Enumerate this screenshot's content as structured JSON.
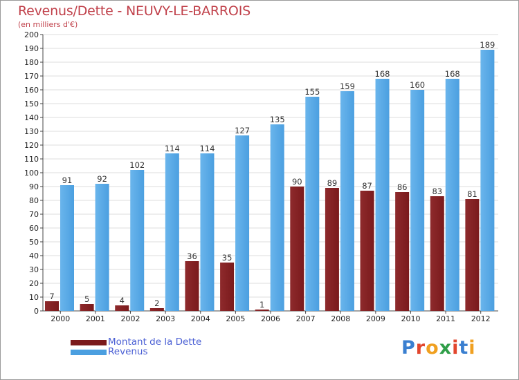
{
  "title": "Revenus/Dette - NEUVY-LE-BARROIS",
  "subtitle": "(en milliers d'€)",
  "colors": {
    "title": "#c0404a",
    "debt": "#7a1a1c",
    "revenue": "#4b9fe0",
    "legend_text": "#4a5fd4",
    "grid": "#dddddd"
  },
  "chart_data": {
    "type": "bar",
    "title": "Revenus/Dette - NEUVY-LE-BARROIS",
    "subtitle": "(en milliers d'€)",
    "xlabel": "",
    "ylabel": "",
    "ylim": [
      0,
      200
    ],
    "yticks": [
      0,
      10,
      20,
      30,
      40,
      50,
      60,
      70,
      80,
      90,
      100,
      110,
      120,
      130,
      140,
      150,
      160,
      170,
      180,
      190,
      200
    ],
    "grid": true,
    "legend_position": "bottom-left",
    "categories": [
      "2000",
      "2001",
      "2002",
      "2003",
      "2004",
      "2005",
      "2006",
      "2007",
      "2008",
      "2009",
      "2010",
      "2011",
      "2012"
    ],
    "series": [
      {
        "name": "Montant de la Dette",
        "values": [
          7,
          5,
          4,
          2,
          36,
          35,
          1,
          90,
          89,
          87,
          86,
          83,
          81
        ]
      },
      {
        "name": "Revenus",
        "values": [
          91,
          92,
          102,
          114,
          114,
          127,
          135,
          155,
          159,
          168,
          160,
          168,
          189
        ]
      }
    ]
  },
  "legend": {
    "items": [
      {
        "label": "Montant de la Dette",
        "icon": "legend-swatch-debt"
      },
      {
        "label": "Revenus",
        "icon": "legend-swatch-revenue"
      }
    ]
  },
  "logo": {
    "text": "Proxiti",
    "letters": [
      "P",
      "r",
      "o",
      "x",
      "i",
      "t",
      "i"
    ],
    "letter_colors": [
      "#3a7fd0",
      "#e2462d",
      "#f0a020",
      "#2f9e48",
      "#e2462d",
      "#3a7fd0",
      "#f0a020"
    ]
  }
}
